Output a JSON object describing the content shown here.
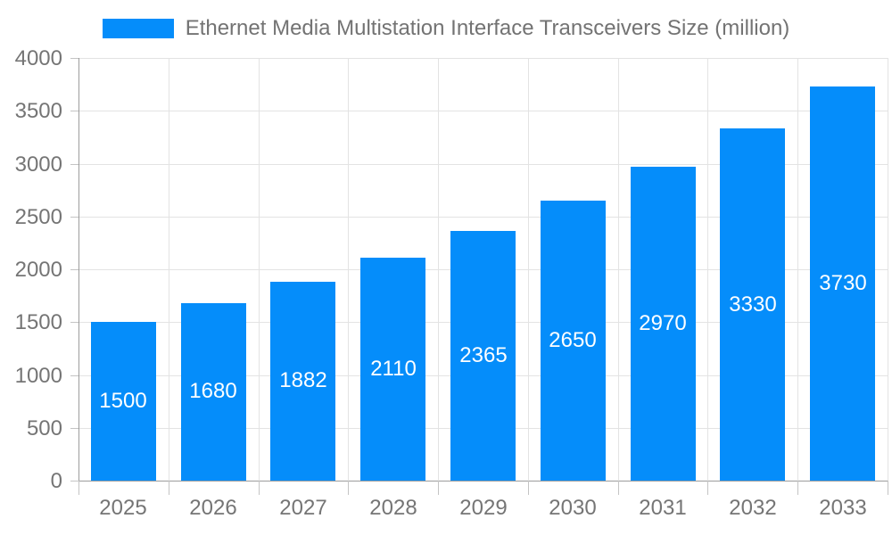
{
  "colors": {
    "bar": "#058DFA",
    "grid_line": "#e3e3e3",
    "axis_line": "#9c9c9c",
    "tick_mark": "#c4c4c4",
    "axis_text": "#757575",
    "legend_text": "#737373",
    "value_label_text": "#ffffff",
    "background": "#ffffff"
  },
  "chart_data": {
    "type": "bar",
    "title": "Ethernet Media Multistation Interface Transceivers Size (million)",
    "categories": [
      "2025",
      "2026",
      "2027",
      "2028",
      "2029",
      "2030",
      "2031",
      "2032",
      "2033"
    ],
    "values": [
      1500,
      1680,
      1882,
      2110,
      2365,
      2650,
      2970,
      3330,
      3730
    ],
    "xlabel": "",
    "ylabel": "",
    "ylim": [
      0,
      4000
    ],
    "yticks": [
      0,
      500,
      1000,
      1500,
      2000,
      2500,
      3000,
      3500,
      4000
    ],
    "grid": true,
    "legend_position": "top",
    "value_labels_position": "inside-center"
  }
}
